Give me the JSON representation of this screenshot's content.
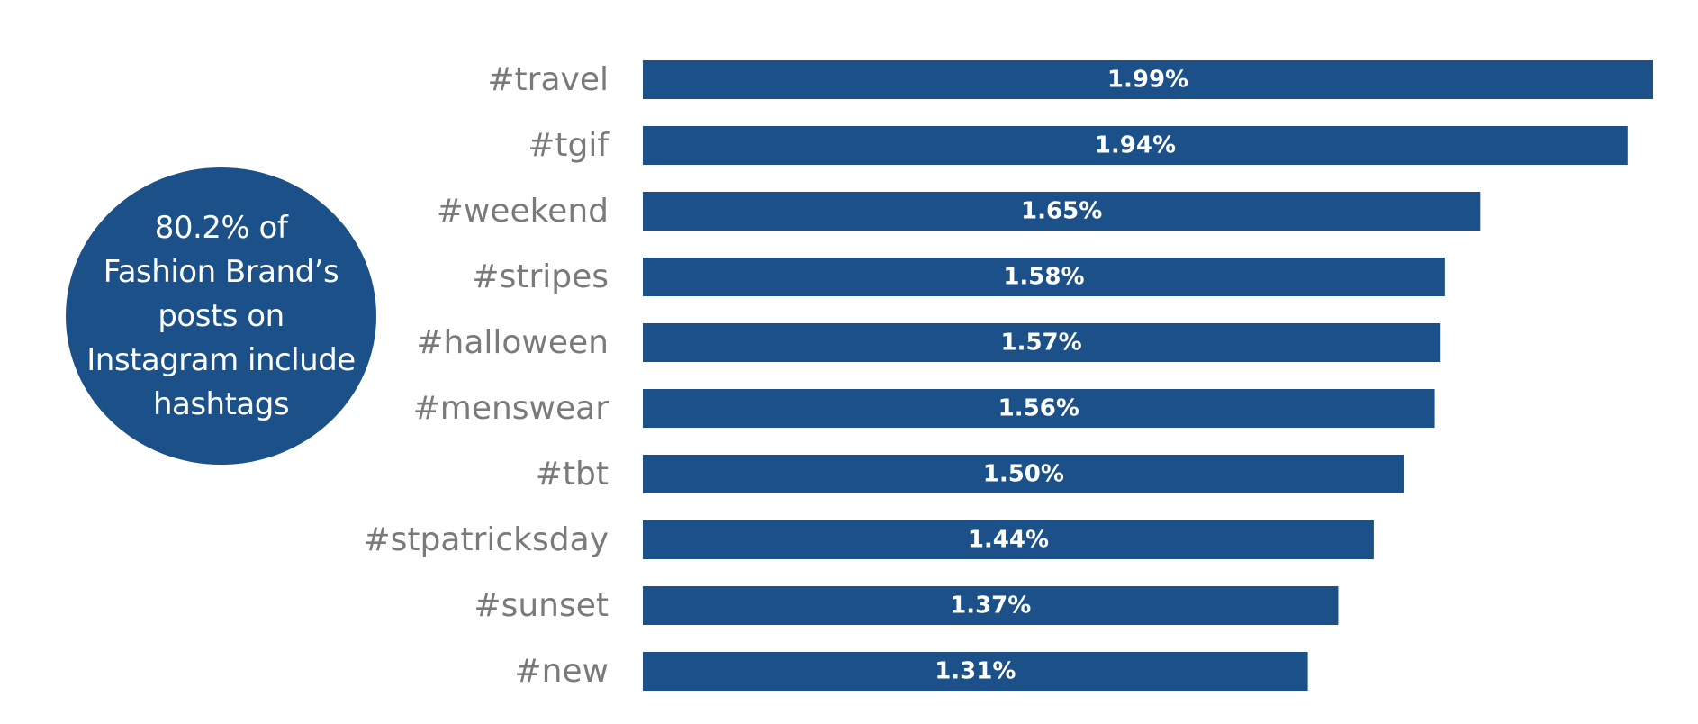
{
  "callout": {
    "lines": [
      "80.2% of",
      "Fashion Brand’s",
      "posts on",
      "Instagram include",
      "hashtags"
    ],
    "color": "#1b5088"
  },
  "chart_data": {
    "type": "bar",
    "orientation": "horizontal",
    "categories": [
      "#travel",
      "#tgif",
      "#weekend",
      "#stripes",
      "#halloween",
      "#menswear",
      "#tbt",
      "#stpatricksday",
      "#sunset",
      "#new"
    ],
    "values": [
      1.99,
      1.94,
      1.65,
      1.58,
      1.57,
      1.56,
      1.5,
      1.44,
      1.37,
      1.31
    ],
    "value_labels": [
      "1.99%",
      "1.94%",
      "1.65%",
      "1.58%",
      "1.57%",
      "1.56%",
      "1.50%",
      "1.44%",
      "1.37%",
      "1.31%"
    ],
    "xlim": [
      0,
      1.99
    ],
    "bar_color": "#1b5088",
    "label_color": "#7a7a7a",
    "value_label_color": "#ffffff",
    "grid": false,
    "legend": "none"
  }
}
